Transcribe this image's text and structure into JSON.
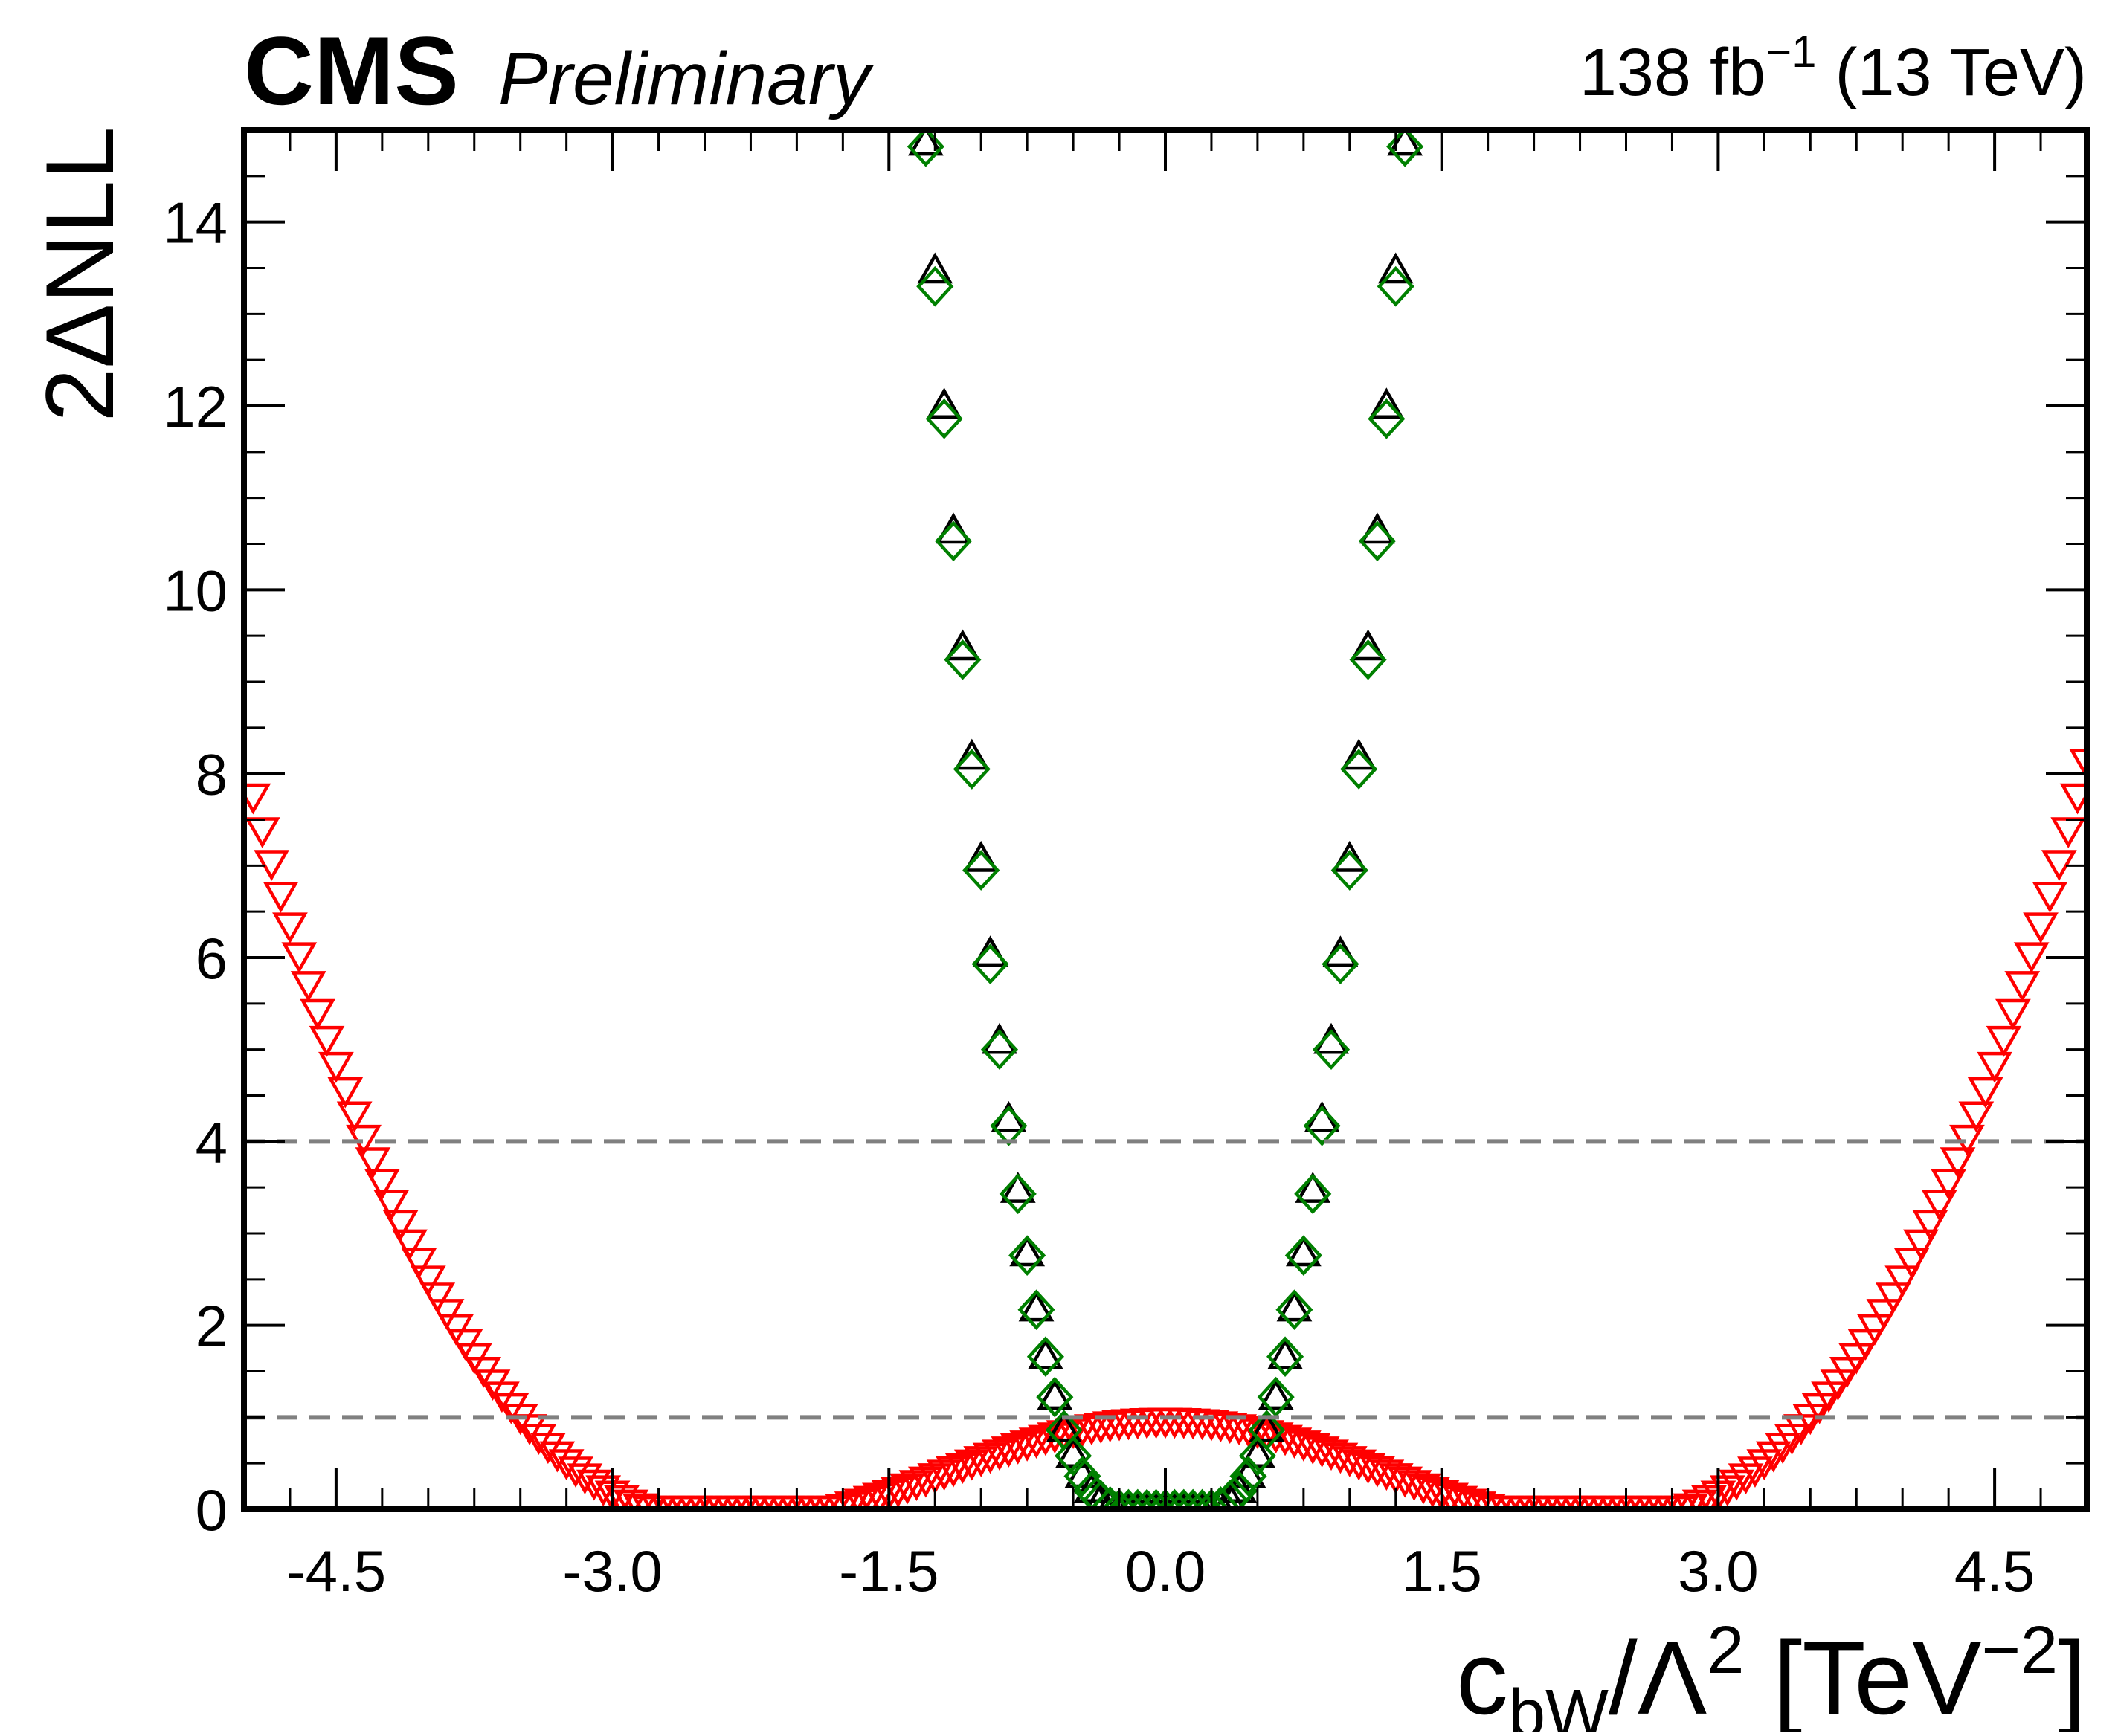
{
  "header": {
    "experiment": "CMS",
    "status": "Preliminary",
    "lumi_value": "138 fb",
    "lumi_exp": "−1",
    "energy": " (13 TeV)"
  },
  "ylabel": "2ΔNLL",
  "xlabel": {
    "c": "c",
    "sub": "bW",
    "mid": "/Λ",
    "sup2": "2",
    "open": " [TeV",
    "supneg": "−2",
    "close": "]"
  },
  "chart_data": {
    "type": "scatter",
    "xlim": [
      -5.0,
      5.0
    ],
    "ylim": [
      0,
      15
    ],
    "xticks": [
      -4.5,
      -3.0,
      -1.5,
      0.0,
      1.5,
      3.0,
      4.5
    ],
    "xtick_labels": [
      "-4.5",
      "-3.0",
      "-1.5",
      "0.0",
      "1.5",
      "3.0",
      "4.5"
    ],
    "yticks": [
      0,
      2,
      4,
      6,
      8,
      10,
      12,
      14
    ],
    "ytick_labels": [
      "0",
      "2",
      "4",
      "6",
      "8",
      "10",
      "12",
      "14"
    ],
    "reference_lines": [
      1,
      4
    ],
    "reference_line_color": "#808080",
    "series": [
      {
        "marker": "triangle-down-open",
        "color": "#ff0000",
        "x": [
          -4.95,
          -4.9,
          -4.85,
          -4.8,
          -4.75,
          -4.7,
          -4.65,
          -4.6,
          -4.55,
          -4.5,
          -4.45,
          -4.4,
          -4.35,
          -4.3,
          -4.25,
          -4.2,
          -4.15,
          -4.1,
          -4.05,
          -4.0,
          -3.95,
          -3.9,
          -3.85,
          -3.8,
          -3.75,
          -3.7,
          -3.65,
          -3.6,
          -3.55,
          -3.5,
          -3.45,
          -3.4,
          -3.35,
          -3.3,
          -3.25,
          -3.2,
          -3.15,
          -3.1,
          -3.05,
          -3.0,
          -2.95,
          -2.9,
          -2.85,
          -2.8,
          -2.75,
          -2.7,
          -2.65,
          -2.6,
          -2.55,
          -2.5,
          -2.45,
          -2.4,
          -2.35,
          -2.3,
          -2.25,
          -2.2,
          -2.15,
          -2.1,
          -2.05,
          -2.0,
          -1.95,
          -1.9,
          -1.85,
          -1.8,
          -1.75,
          -1.7,
          -1.65,
          -1.6,
          -1.55,
          -1.5,
          -1.45,
          -1.4,
          -1.35,
          -1.3,
          -1.25,
          -1.2,
          -1.15,
          -1.1,
          -1.05,
          -1.0,
          -0.95,
          -0.9,
          -0.85,
          -0.8,
          -0.75,
          -0.7,
          -0.65,
          -0.6,
          -0.55,
          -0.5,
          -0.45,
          -0.4,
          -0.35,
          -0.3,
          -0.25,
          -0.2,
          -0.15,
          -0.1,
          -0.05,
          0.0,
          0.05,
          0.1,
          0.15,
          0.2,
          0.25,
          0.3,
          0.35,
          0.4,
          0.45,
          0.5,
          0.55,
          0.6,
          0.65,
          0.7,
          0.75,
          0.8,
          0.85,
          0.9,
          0.95,
          1.0,
          1.05,
          1.1,
          1.15,
          1.2,
          1.25,
          1.3,
          1.35,
          1.4,
          1.45,
          1.5,
          1.55,
          1.6,
          1.65,
          1.7,
          1.75,
          1.8,
          1.85,
          1.9,
          1.95,
          2.0,
          2.05,
          2.1,
          2.15,
          2.2,
          2.25,
          2.3,
          2.35,
          2.4,
          2.45,
          2.5,
          2.55,
          2.6,
          2.65,
          2.7,
          2.75,
          2.8,
          2.85,
          2.9,
          2.95,
          3.0,
          3.05,
          3.1,
          3.15,
          3.2,
          3.25,
          3.3,
          3.35,
          3.4,
          3.45,
          3.5,
          3.55,
          3.6,
          3.65,
          3.7,
          3.75,
          3.8,
          3.85,
          3.9,
          3.95,
          4.0,
          4.05,
          4.1,
          4.15,
          4.2,
          4.25,
          4.3,
          4.35,
          4.4,
          4.45,
          4.5,
          4.55,
          4.6,
          4.65,
          4.7,
          4.75,
          4.8,
          4.85,
          4.9,
          4.95,
          5.0
        ],
        "y": [
          7.747,
          7.379,
          7.023,
          6.677,
          6.343,
          6.019,
          5.706,
          5.402,
          5.109,
          4.826,
          4.552,
          4.288,
          4.034,
          3.788,
          3.552,
          3.325,
          3.106,
          2.896,
          2.695,
          2.502,
          2.317,
          2.14,
          1.971,
          1.81,
          1.656,
          1.51,
          1.371,
          1.24,
          1.115,
          0.997,
          0.886,
          0.781,
          0.683,
          0.591,
          0.505,
          0.425,
          0.351,
          0.283,
          0.221,
          0.164,
          0.112,
          0.066,
          0.025,
          -0.011,
          -0.043,
          -0.071,
          -0.094,
          -0.114,
          -0.13,
          -0.143,
          -0.152,
          -0.158,
          -0.16,
          -0.159,
          -0.156,
          -0.149,
          -0.14,
          -0.128,
          -0.114,
          -0.098,
          -0.079,
          -0.058,
          -0.035,
          -0.01,
          0.017,
          0.045,
          0.075,
          0.106,
          0.139,
          0.173,
          0.207,
          0.243,
          0.279,
          0.316,
          0.353,
          0.391,
          0.428,
          0.465,
          0.502,
          0.539,
          0.575,
          0.61,
          0.644,
          0.677,
          0.709,
          0.74,
          0.769,
          0.796,
          0.821,
          0.845,
          0.866,
          0.885,
          0.902,
          0.917,
          0.93,
          0.94,
          0.947,
          0.952,
          0.955,
          0.956,
          0.955,
          0.952,
          0.947,
          0.94,
          0.93,
          0.917,
          0.902,
          0.885,
          0.866,
          0.845,
          0.821,
          0.796,
          0.769,
          0.74,
          0.709,
          0.677,
          0.644,
          0.61,
          0.575,
          0.539,
          0.502,
          0.465,
          0.428,
          0.391,
          0.353,
          0.316,
          0.279,
          0.243,
          0.207,
          0.173,
          0.139,
          0.106,
          0.075,
          0.045,
          0.017,
          -0.01,
          -0.035,
          -0.058,
          -0.079,
          -0.098,
          -0.114,
          -0.128,
          -0.14,
          -0.149,
          -0.156,
          -0.159,
          -0.16,
          -0.158,
          -0.152,
          -0.143,
          -0.13,
          -0.114,
          -0.094,
          -0.071,
          -0.043,
          -0.011,
          0.025,
          0.066,
          0.112,
          0.164,
          0.221,
          0.283,
          0.351,
          0.425,
          0.505,
          0.591,
          0.683,
          0.781,
          0.886,
          0.997,
          1.115,
          1.24,
          1.371,
          1.51,
          1.656,
          1.81,
          1.971,
          2.14,
          2.317,
          2.502,
          2.695,
          2.896,
          3.106,
          3.325,
          3.552,
          3.788,
          4.034,
          4.288,
          4.552,
          4.826,
          5.109,
          5.402,
          5.706,
          6.019,
          6.343,
          6.677,
          7.023,
          7.379,
          7.747,
          8.125
        ]
      },
      {
        "marker": "triangle-up-open",
        "color": "#000000",
        "x": [
          -1.3,
          -1.25,
          -1.2,
          -1.15,
          -1.1,
          -1.05,
          -1.0,
          -0.95,
          -0.9,
          -0.85,
          -0.8,
          -0.75,
          -0.7,
          -0.65,
          -0.6,
          -0.55,
          -0.5,
          -0.45,
          -0.4,
          -0.35,
          -0.3,
          -0.25,
          -0.2,
          -0.15,
          -0.1,
          -0.05,
          0.0,
          0.05,
          0.1,
          0.15,
          0.2,
          0.25,
          0.3,
          0.35,
          0.4,
          0.45,
          0.5,
          0.55,
          0.6,
          0.65,
          0.7,
          0.75,
          0.8,
          0.85,
          0.9,
          0.95,
          1.0,
          1.05,
          1.1,
          1.15,
          1.2,
          1.25,
          1.3
        ],
        "y": [
          14.87,
          13.48,
          12.01,
          10.65,
          9.38,
          8.19,
          7.08,
          6.05,
          5.1,
          4.25,
          3.48,
          2.79,
          2.19,
          1.67,
          1.23,
          0.88,
          0.6,
          0.38,
          0.22,
          0.11,
          0.04,
          0.01,
          0.0,
          0.0,
          0.0,
          0.0,
          0.0,
          0.0,
          0.0,
          0.0,
          0.0,
          0.01,
          0.04,
          0.11,
          0.22,
          0.38,
          0.6,
          0.88,
          1.23,
          1.67,
          2.19,
          2.79,
          3.48,
          4.25,
          5.1,
          6.05,
          7.08,
          8.19,
          9.38,
          10.65,
          12.01,
          13.48,
          14.87
        ]
      },
      {
        "marker": "diamond-open",
        "color": "#008000",
        "x": [
          -1.3,
          -1.25,
          -1.2,
          -1.15,
          -1.1,
          -1.05,
          -1.0,
          -0.95,
          -0.9,
          -0.85,
          -0.8,
          -0.75,
          -0.7,
          -0.65,
          -0.6,
          -0.55,
          -0.5,
          -0.45,
          -0.4,
          -0.35,
          -0.3,
          -0.25,
          -0.2,
          -0.15,
          -0.1,
          -0.05,
          0.0,
          0.05,
          0.1,
          0.15,
          0.2,
          0.25,
          0.3,
          0.35,
          0.4,
          0.45,
          0.5,
          0.55,
          0.6,
          0.65,
          0.7,
          0.75,
          0.8,
          0.85,
          0.9,
          0.95,
          1.0,
          1.05,
          1.1,
          1.15,
          1.2,
          1.25,
          1.3
        ],
        "y": [
          14.82,
          13.3,
          11.86,
          10.53,
          9.24,
          8.05,
          6.95,
          5.93,
          5.0,
          4.17,
          3.43,
          2.76,
          2.17,
          1.66,
          1.22,
          0.86,
          0.58,
          0.36,
          0.2,
          0.1,
          0.03,
          0.0,
          0.0,
          0.0,
          0.0,
          0.0,
          0.0,
          0.0,
          0.0,
          0.0,
          0.0,
          0.0,
          0.03,
          0.1,
          0.2,
          0.36,
          0.58,
          0.86,
          1.22,
          1.66,
          2.17,
          2.76,
          3.43,
          4.17,
          5.0,
          5.93,
          6.95,
          8.05,
          9.24,
          10.53,
          11.86,
          13.3,
          14.82
        ]
      }
    ]
  }
}
